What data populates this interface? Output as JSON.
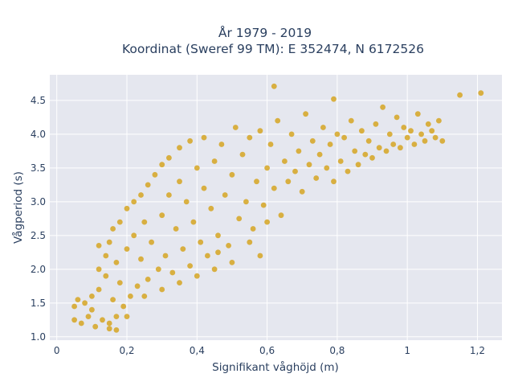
{
  "chart_data": {
    "type": "scatter",
    "title_lines": [
      "År 1979 - 2019",
      "Koordinat (Sweref 99 TM): E 352474, N 6172526"
    ],
    "xlabel": "Signifikant våghöjd (m)",
    "ylabel": "Vågperiod (s)",
    "xlim": [
      -0.02,
      1.27
    ],
    "ylim": [
      0.95,
      4.88
    ],
    "x_ticks": [
      0,
      0.2,
      0.4,
      0.6,
      0.8,
      1,
      1.2
    ],
    "x_tick_labels": [
      "0",
      "0,2",
      "0,4",
      "0,6",
      "0,8",
      "1",
      "1,2"
    ],
    "y_ticks": [
      1.0,
      1.5,
      2.0,
      2.5,
      3.0,
      3.5,
      4.0,
      4.5
    ],
    "y_tick_labels": [
      "1.0",
      "1.5",
      "2.0",
      "2.5",
      "3.0",
      "3.5",
      "4.0",
      "4.5"
    ],
    "grid": true,
    "marker_color": "#d4a21b",
    "plot_background": "#e5e7ef",
    "series": [
      {
        "points": [
          [
            0.05,
            1.45
          ],
          [
            0.05,
            1.25
          ],
          [
            0.06,
            1.55
          ],
          [
            0.07,
            1.2
          ],
          [
            0.08,
            1.5
          ],
          [
            0.09,
            1.3
          ],
          [
            0.1,
            1.4
          ],
          [
            0.1,
            1.6
          ],
          [
            0.11,
            1.15
          ],
          [
            0.12,
            1.7
          ],
          [
            0.12,
            2.0
          ],
          [
            0.12,
            2.35
          ],
          [
            0.13,
            1.25
          ],
          [
            0.14,
            1.9
          ],
          [
            0.14,
            2.2
          ],
          [
            0.15,
            1.12
          ],
          [
            0.15,
            2.4
          ],
          [
            0.16,
            1.55
          ],
          [
            0.16,
            2.6
          ],
          [
            0.17,
            1.3
          ],
          [
            0.17,
            2.1
          ],
          [
            0.18,
            2.7
          ],
          [
            0.18,
            1.8
          ],
          [
            0.19,
            1.45
          ],
          [
            0.2,
            2.3
          ],
          [
            0.2,
            2.9
          ],
          [
            0.21,
            1.6
          ],
          [
            0.22,
            2.5
          ],
          [
            0.22,
            3.0
          ],
          [
            0.23,
            1.75
          ],
          [
            0.24,
            2.15
          ],
          [
            0.24,
            3.1
          ],
          [
            0.25,
            2.7
          ],
          [
            0.26,
            1.85
          ],
          [
            0.26,
            3.25
          ],
          [
            0.27,
            2.4
          ],
          [
            0.28,
            3.4
          ],
          [
            0.29,
            2.0
          ],
          [
            0.3,
            2.8
          ],
          [
            0.3,
            3.55
          ],
          [
            0.31,
            2.2
          ],
          [
            0.32,
            3.1
          ],
          [
            0.32,
            3.65
          ],
          [
            0.33,
            1.95
          ],
          [
            0.34,
            2.6
          ],
          [
            0.35,
            3.3
          ],
          [
            0.35,
            3.8
          ],
          [
            0.36,
            2.3
          ],
          [
            0.37,
            3.0
          ],
          [
            0.38,
            3.9
          ],
          [
            0.38,
            2.05
          ],
          [
            0.39,
            2.7
          ],
          [
            0.4,
            3.5
          ],
          [
            0.41,
            2.4
          ],
          [
            0.42,
            3.2
          ],
          [
            0.42,
            3.95
          ],
          [
            0.43,
            2.2
          ],
          [
            0.44,
            2.9
          ],
          [
            0.45,
            3.6
          ],
          [
            0.46,
            2.5
          ],
          [
            0.47,
            3.85
          ],
          [
            0.48,
            3.1
          ],
          [
            0.49,
            2.35
          ],
          [
            0.5,
            3.4
          ],
          [
            0.51,
            4.1
          ],
          [
            0.52,
            2.75
          ],
          [
            0.53,
            3.7
          ],
          [
            0.54,
            3.0
          ],
          [
            0.55,
            3.95
          ],
          [
            0.56,
            2.6
          ],
          [
            0.57,
            3.3
          ],
          [
            0.58,
            4.05
          ],
          [
            0.59,
            2.95
          ],
          [
            0.6,
            3.5
          ],
          [
            0.61,
            3.85
          ],
          [
            0.62,
            3.2
          ],
          [
            0.63,
            4.2
          ],
          [
            0.64,
            2.8
          ],
          [
            0.65,
            3.6
          ],
          [
            0.66,
            3.3
          ],
          [
            0.67,
            4.0
          ],
          [
            0.68,
            3.45
          ],
          [
            0.69,
            3.75
          ],
          [
            0.7,
            3.15
          ],
          [
            0.71,
            4.3
          ],
          [
            0.72,
            3.55
          ],
          [
            0.73,
            3.9
          ],
          [
            0.74,
            3.35
          ],
          [
            0.75,
            3.7
          ],
          [
            0.76,
            4.1
          ],
          [
            0.77,
            3.5
          ],
          [
            0.78,
            3.85
          ],
          [
            0.79,
            3.3
          ],
          [
            0.8,
            4.0
          ],
          [
            0.81,
            3.6
          ],
          [
            0.82,
            3.95
          ],
          [
            0.83,
            3.45
          ],
          [
            0.84,
            4.2
          ],
          [
            0.85,
            3.75
          ],
          [
            0.86,
            3.55
          ],
          [
            0.87,
            4.05
          ],
          [
            0.88,
            3.7
          ],
          [
            0.89,
            3.9
          ],
          [
            0.9,
            3.65
          ],
          [
            0.91,
            4.15
          ],
          [
            0.92,
            3.8
          ],
          [
            0.93,
            4.4
          ],
          [
            0.94,
            3.75
          ],
          [
            0.95,
            4.0
          ],
          [
            0.96,
            3.85
          ],
          [
            0.97,
            4.25
          ],
          [
            0.98,
            3.8
          ],
          [
            0.99,
            4.1
          ],
          [
            1.0,
            3.95
          ],
          [
            1.01,
            4.05
          ],
          [
            1.02,
            3.85
          ],
          [
            1.03,
            4.3
          ],
          [
            1.04,
            4.0
          ],
          [
            1.05,
            3.9
          ],
          [
            1.06,
            4.15
          ],
          [
            1.07,
            4.05
          ],
          [
            1.08,
            3.95
          ],
          [
            1.09,
            4.2
          ],
          [
            1.1,
            3.9
          ],
          [
            1.15,
            4.58
          ],
          [
            1.21,
            4.61
          ],
          [
            0.62,
            4.71
          ],
          [
            0.79,
            4.52
          ],
          [
            0.58,
            2.2
          ],
          [
            0.5,
            2.1
          ],
          [
            0.45,
            2.0
          ],
          [
            0.4,
            1.9
          ],
          [
            0.35,
            1.8
          ],
          [
            0.3,
            1.7
          ],
          [
            0.25,
            1.6
          ],
          [
            0.2,
            1.3
          ],
          [
            0.15,
            1.2
          ],
          [
            0.17,
            1.1
          ],
          [
            0.55,
            2.4
          ],
          [
            0.6,
            2.7
          ],
          [
            0.46,
            2.25
          ]
        ]
      }
    ]
  }
}
